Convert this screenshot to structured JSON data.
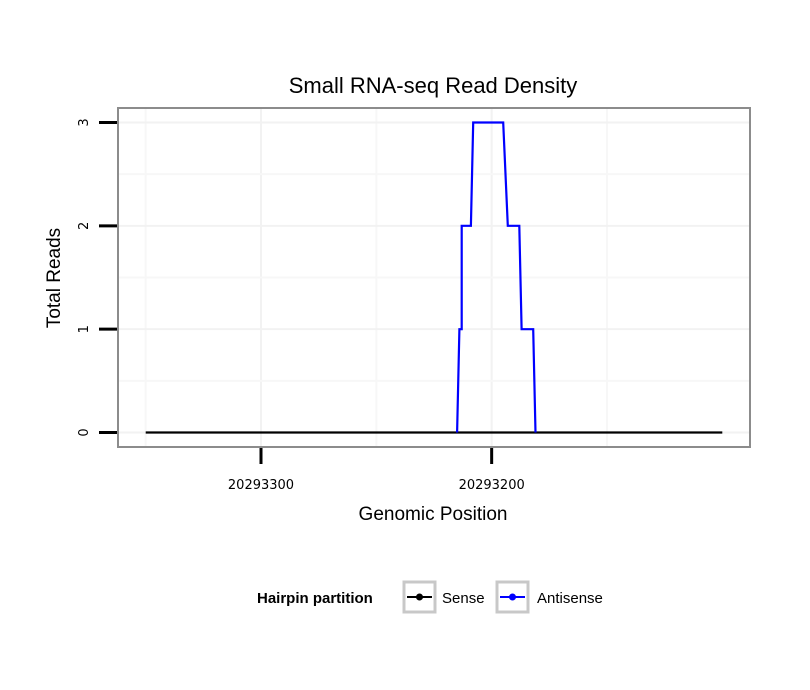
{
  "chart_data": {
    "type": "line",
    "title": "Small RNA-seq Read Density",
    "xlabel": "Genomic Position",
    "ylabel": "Total Reads",
    "x_reversed": true,
    "xlim": [
      20293362,
      20293088
    ],
    "ylim": [
      -0.14,
      3.14
    ],
    "x_ticks": [
      20293300,
      20293200
    ],
    "x_tick_labels": [
      "20293300",
      "20293200"
    ],
    "y_ticks": [
      0,
      1,
      2,
      3
    ],
    "y_tick_labels": [
      "0",
      "1",
      "2",
      "3"
    ],
    "grid": true,
    "legend": {
      "title": "Hairpin partition",
      "placement": "bottom",
      "entries": [
        "Sense",
        "Antisense"
      ]
    },
    "series": [
      {
        "name": "Sense",
        "color": "#000000",
        "x": [
          20293350,
          20293100
        ],
        "y": [
          0,
          0
        ]
      },
      {
        "name": "Antisense",
        "color": "#0000ff",
        "x": [
          20293215,
          20293214,
          20293213,
          20293213,
          20293212,
          20293212,
          20293209,
          20293208,
          20293208,
          20293195,
          20293193,
          20293193,
          20293188,
          20293187,
          20293187,
          20293182,
          20293181,
          20293181
        ],
        "y": [
          0,
          1,
          1,
          2,
          2,
          2,
          2,
          3,
          3,
          3,
          2,
          2,
          2,
          1,
          1,
          1,
          0,
          0
        ]
      }
    ]
  }
}
